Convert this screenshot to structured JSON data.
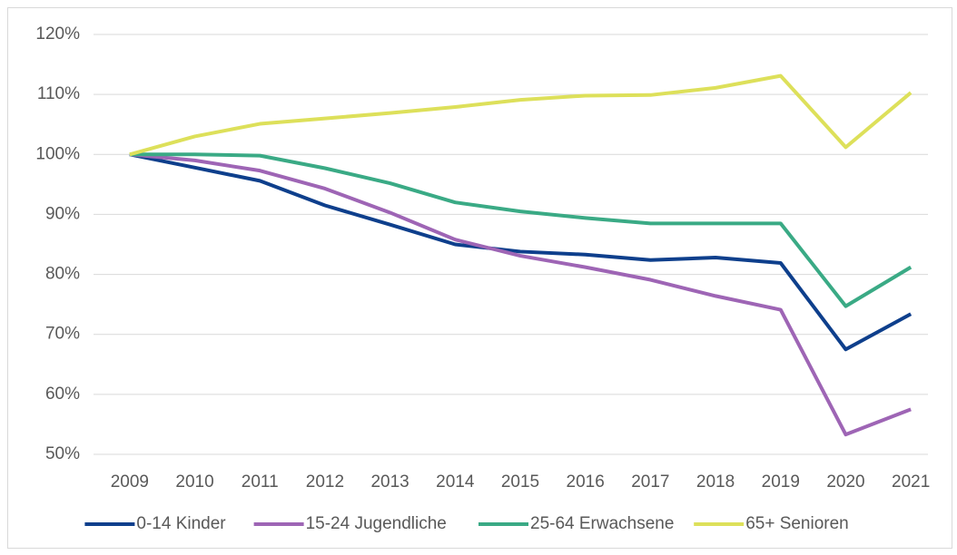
{
  "chart_data": {
    "type": "line",
    "categories": [
      "2009",
      "2010",
      "2011",
      "2012",
      "2013",
      "2014",
      "2015",
      "2016",
      "2017",
      "2018",
      "2019",
      "2020",
      "2021"
    ],
    "series": [
      {
        "name": "0-14 Kinder",
        "color": "#0e3f8c",
        "values": [
          100,
          97.8,
          95.6,
          91.5,
          88.3,
          85,
          83.8,
          83.3,
          82.4,
          82.8,
          81.9,
          67.5,
          73.4
        ]
      },
      {
        "name": "15-24 Jugendliche",
        "color": "#9e65b5",
        "values": [
          100,
          99,
          97.3,
          94.3,
          90.3,
          85.8,
          83.1,
          81.2,
          79.1,
          76.4,
          74.1,
          53.3,
          57.5
        ]
      },
      {
        "name": "25-64 Erwachsene",
        "color": "#3aaa85",
        "values": [
          100,
          100,
          99.8,
          97.7,
          95.2,
          92,
          90.5,
          89.4,
          88.5,
          88.5,
          88.5,
          74.7,
          81.2
        ]
      },
      {
        "name": "65+ Senioren",
        "color": "#dde05a",
        "values": [
          100,
          103,
          105.1,
          106,
          106.9,
          107.9,
          109.1,
          109.8,
          109.9,
          111.1,
          113.1,
          101.2,
          110.3
        ]
      }
    ],
    "ylim": [
      50,
      120
    ],
    "yticks": [
      {
        "value": 50,
        "label": "50%"
      },
      {
        "value": 60,
        "label": "60%"
      },
      {
        "value": 70,
        "label": "70%"
      },
      {
        "value": 80,
        "label": "80%"
      },
      {
        "value": 90,
        "label": "90%"
      },
      {
        "value": 100,
        "label": "100%"
      },
      {
        "value": 110,
        "label": "110%"
      },
      {
        "value": 120,
        "label": "120%"
      }
    ],
    "grid": true,
    "legend": "bottom"
  }
}
